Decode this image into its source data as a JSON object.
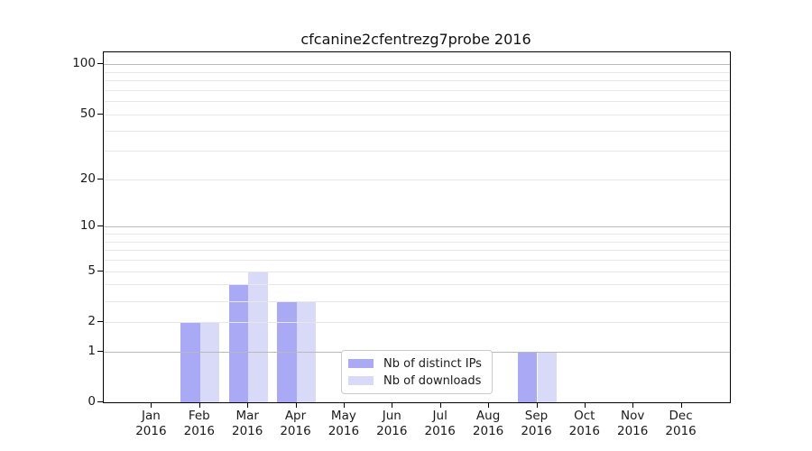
{
  "chart_data": {
    "type": "bar",
    "title": "cfcanine2cfentrezg7probe 2016",
    "year_label": "2016",
    "categories": [
      "Jan",
      "Feb",
      "Mar",
      "Apr",
      "May",
      "Jun",
      "Jul",
      "Aug",
      "Sep",
      "Oct",
      "Nov",
      "Dec"
    ],
    "series": [
      {
        "name": "Nb of distinct IPs",
        "color": "#a9a9f5",
        "values": [
          0,
          2,
          4,
          3,
          0,
          0,
          0,
          0,
          1,
          0,
          0,
          0
        ]
      },
      {
        "name": "Nb of downloads",
        "color": "#d9d9f8",
        "values": [
          0,
          2,
          5,
          3,
          0,
          0,
          0,
          0,
          1,
          0,
          0,
          0
        ]
      }
    ],
    "yscale": "log1p",
    "ylim": [
      0,
      118
    ],
    "y_ticks": [
      0,
      1,
      2,
      5,
      10,
      20,
      50,
      100
    ],
    "y_tick_labels": [
      "0",
      "1",
      "2",
      "5",
      "10",
      "20",
      "50",
      "100"
    ],
    "y_decade_gridlines": [
      1,
      10,
      100
    ],
    "y_light_gridlines": [
      2,
      3,
      4,
      5,
      6,
      7,
      8,
      9,
      20,
      30,
      40,
      50,
      60,
      70,
      80,
      90
    ],
    "grid": true,
    "legend_position": "lower-center"
  },
  "colors": {
    "bar_distinct_ips": "#a9a9f5",
    "bar_downloads": "#d9d9f8",
    "grid_light": "#e7e7e7",
    "grid_decade": "#b9b9b9",
    "axis": "#000000",
    "legend_border": "#cbcbcb",
    "text": "#1a1a1a"
  }
}
